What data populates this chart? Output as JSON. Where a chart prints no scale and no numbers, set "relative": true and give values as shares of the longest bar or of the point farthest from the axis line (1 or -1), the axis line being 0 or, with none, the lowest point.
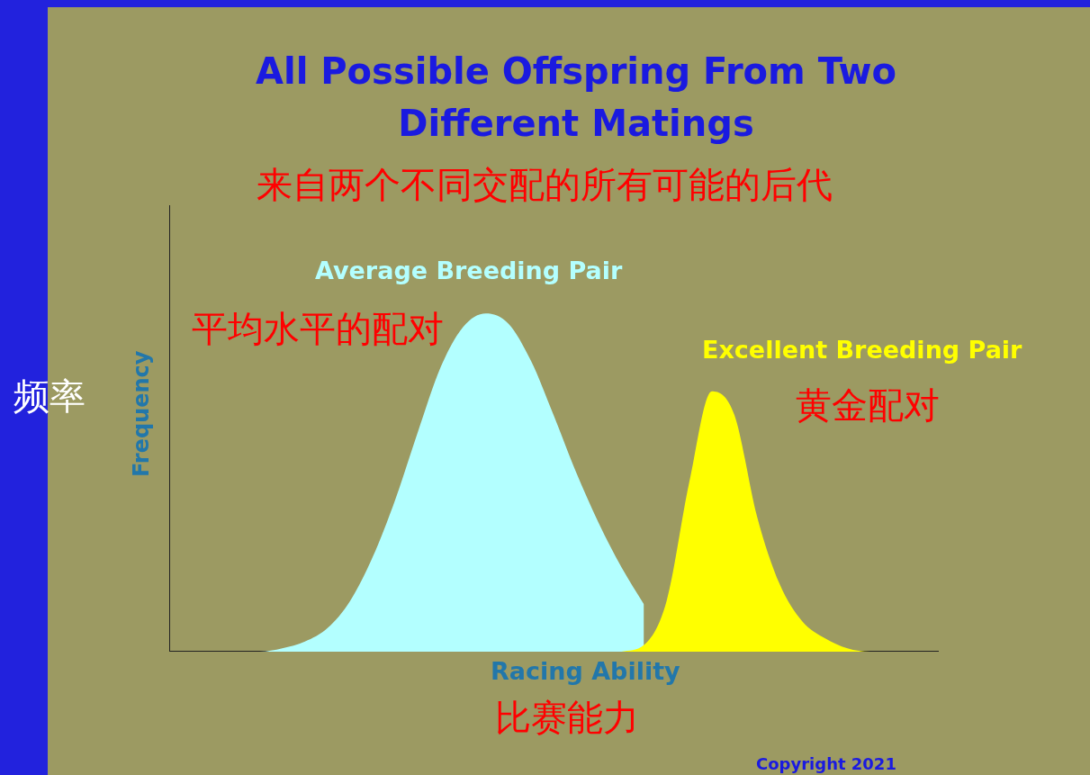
{
  "chart_data": {
    "type": "area",
    "relative": true,
    "title": "All Possible Offspring From Two Different Matings",
    "subtitle": "来自两个不同交配的所有可能的后代",
    "xlabel": "Racing Ability",
    "ylabel": "Frequency",
    "legend": false,
    "categories": [
      null,
      null,
      null,
      null,
      null,
      null,
      null,
      null,
      null,
      null,
      null,
      null,
      null,
      null,
      null,
      null,
      null,
      null,
      null,
      null,
      null,
      null,
      null,
      null,
      null,
      null,
      null,
      null,
      null,
      null,
      null,
      null,
      null,
      null,
      null
    ],
    "series": [
      {
        "name": "Average Breeding Pair",
        "color": "#b3ffff",
        "values": [
          0,
          0,
          0,
          0,
          0,
          0.01,
          0.03,
          0.07,
          0.15,
          0.28,
          0.45,
          0.65,
          0.84,
          0.96,
          1,
          0.97,
          0.86,
          0.7,
          0.53,
          0.38,
          0.25,
          0.14,
          null,
          null,
          null,
          null,
          null,
          null,
          null,
          null,
          null,
          null,
          null,
          null,
          null
        ]
      },
      {
        "name": "Excellent Breeding Pair",
        "color": "#ffff00",
        "values": [
          null,
          null,
          null,
          null,
          null,
          null,
          null,
          null,
          null,
          null,
          null,
          null,
          null,
          null,
          null,
          null,
          null,
          null,
          null,
          null,
          0,
          0.02,
          0.15,
          0.5,
          0.77,
          0.7,
          0.4,
          0.2,
          0.09,
          0.04,
          0.01,
          0,
          0,
          0,
          0
        ]
      }
    ],
    "annotations": [
      "平均水平的配对",
      "黄金配对",
      "频率",
      "比赛能力",
      "Copyright 2021"
    ]
  }
}
